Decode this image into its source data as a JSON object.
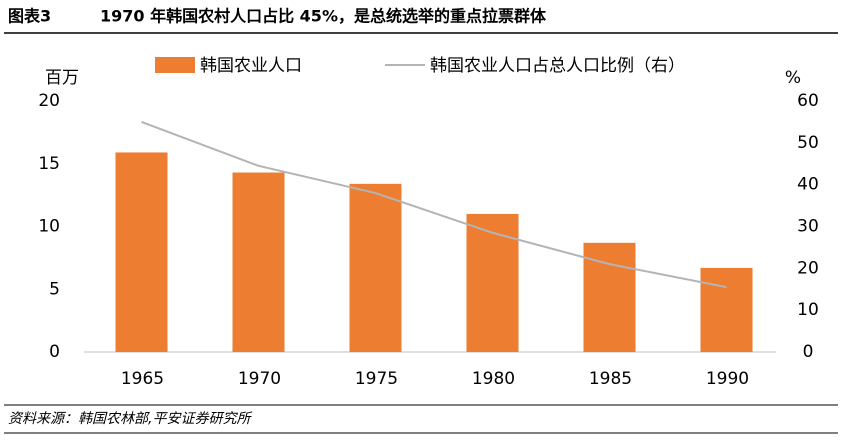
{
  "chart_data": {
    "type": "bar_line",
    "figure_label": "图表3",
    "title": "1970 年韩国农村人口占比 45%，是总统选举的重点拉票群体",
    "y_label": "百万",
    "y2_label": "%",
    "source": "资料来源：韩国农林部,平安证券研究所",
    "categories": [
      "1965",
      "1970",
      "1975",
      "1980",
      "1985",
      "1990"
    ],
    "series": [
      {
        "name": "韩国农业人口",
        "type": "bar",
        "color": "#ed7d31",
        "values": [
          15.9,
          14.3,
          13.4,
          11.0,
          8.7,
          6.7
        ]
      },
      {
        "name": "韩国农业人口占总人口比例（右）",
        "type": "line",
        "axis": "y2",
        "color": "#b4b4b4",
        "values": [
          55,
          44.5,
          38,
          28.5,
          21,
          15.5
        ]
      }
    ],
    "ylim": [
      0,
      20
    ],
    "yticks": [
      0,
      5,
      10,
      15,
      20
    ],
    "y2lim": [
      0,
      60
    ],
    "y2ticks": [
      0,
      10,
      20,
      30,
      40,
      50,
      60
    ],
    "grid": false
  }
}
